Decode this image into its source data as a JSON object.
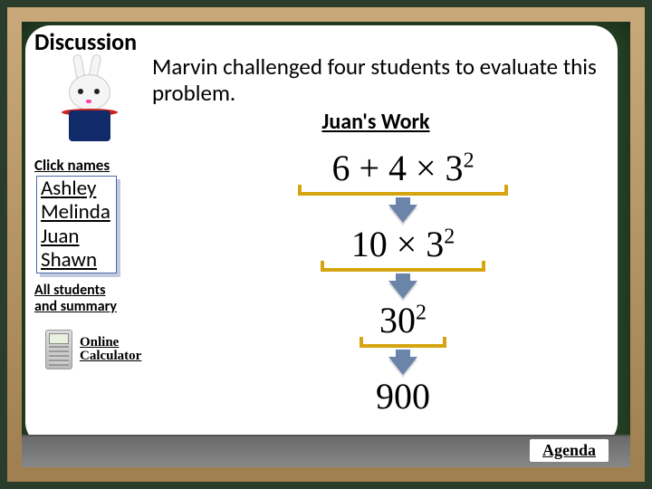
{
  "header": {
    "discussion": "Discussion"
  },
  "intro": "Marvin challenged four students to evaluate this problem.",
  "work_title": "Juan's Work",
  "click_names_label": "Click names",
  "students": {
    "n0": "Ashley",
    "n1": "Melinda",
    "n2": "Juan",
    "n3": "Shawn"
  },
  "all_summary": {
    "line1": "All students",
    "line2": "and summary"
  },
  "calculator": {
    "line1": "Online",
    "line2": " Calculator"
  },
  "agenda_label": "Agenda",
  "math": {
    "line1_html": "6 + 4 × 3<sup>2</sup>",
    "line2_html": "10 × 3<sup>2</sup>",
    "line3_html": "30<sup>2</sup>",
    "line4_html": "900",
    "bracket1_width": 232,
    "bracket2_width": 182,
    "bracket3_width": 96,
    "colors": {
      "bracket": "#d6a410",
      "arrow": "#6b84aa"
    }
  }
}
